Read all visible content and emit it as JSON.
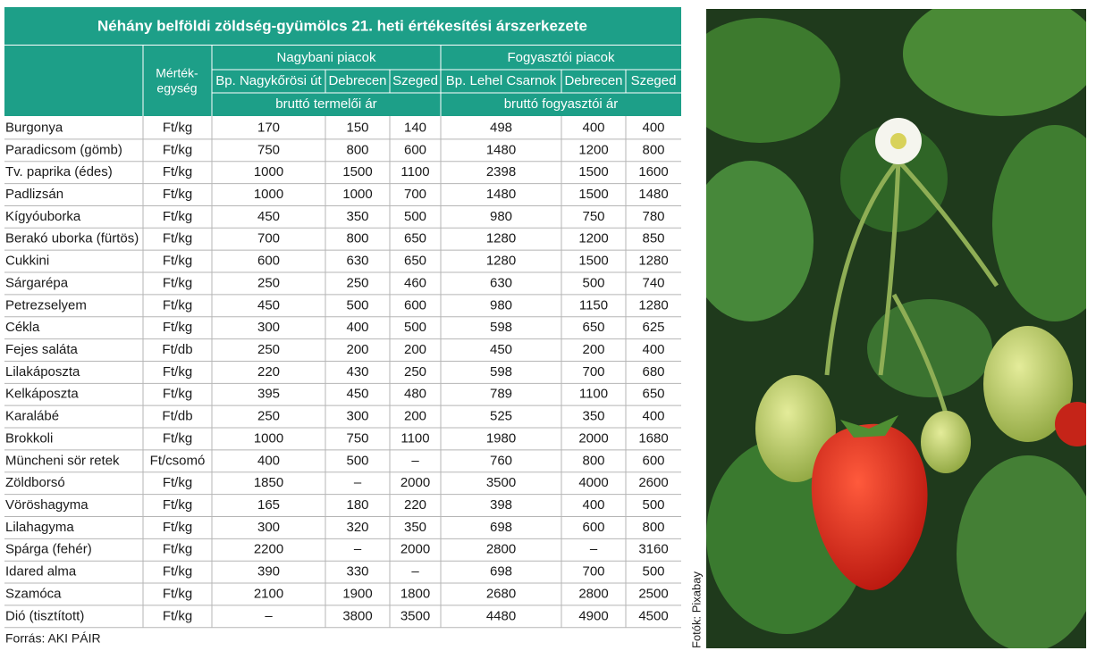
{
  "title": "Néhány belföldi zöldség-gyümölcs 21. heti értékesítési árszerkezete",
  "header": {
    "unit": [
      "Mérték-",
      "egység"
    ],
    "groups": [
      "Nagybani piacok",
      "Fogyasztói piacok"
    ],
    "columns": [
      "Bp. Nagykőrösi út",
      "Debrecen",
      "Szeged",
      "Bp. Lehel Csarnok",
      "Debrecen",
      "Szeged"
    ],
    "price_types": [
      "bruttó termelői ár",
      "bruttó fogyasztói ár"
    ]
  },
  "rows": [
    [
      "Burgonya",
      "Ft/kg",
      170,
      150,
      140,
      498,
      400,
      400
    ],
    [
      "Paradicsom (gömb)",
      "Ft/kg",
      750,
      800,
      600,
      1480,
      1200,
      800
    ],
    [
      "Tv. paprika (édes)",
      "Ft/kg",
      1000,
      1500,
      1100,
      2398,
      1500,
      1600
    ],
    [
      "Padlizsán",
      "Ft/kg",
      1000,
      1000,
      700,
      1480,
      1500,
      1480
    ],
    [
      "Kígyóuborka",
      "Ft/kg",
      450,
      350,
      500,
      980,
      750,
      780
    ],
    [
      "Berakó uborka (fürtös)",
      "Ft/kg",
      700,
      800,
      650,
      1280,
      1200,
      850
    ],
    [
      "Cukkini",
      "Ft/kg",
      600,
      630,
      650,
      1280,
      1500,
      1280
    ],
    [
      "Sárgarépa",
      "Ft/kg",
      250,
      250,
      460,
      630,
      500,
      740
    ],
    [
      "Petrezselyem",
      "Ft/kg",
      450,
      500,
      600,
      980,
      1150,
      1280
    ],
    [
      "Cékla",
      "Ft/kg",
      300,
      400,
      500,
      598,
      650,
      625
    ],
    [
      "Fejes saláta",
      "Ft/db",
      250,
      200,
      200,
      450,
      200,
      400
    ],
    [
      "Lilakáposzta",
      "Ft/kg",
      220,
      430,
      250,
      598,
      700,
      680
    ],
    [
      "Kelkáposzta",
      "Ft/kg",
      395,
      450,
      480,
      789,
      1100,
      650
    ],
    [
      "Karalábé",
      "Ft/db",
      250,
      300,
      200,
      525,
      350,
      400
    ],
    [
      "Brokkoli",
      "Ft/kg",
      1000,
      750,
      1100,
      1980,
      2000,
      1680
    ],
    [
      "Müncheni sör retek",
      "Ft/csomó",
      400,
      500,
      "–",
      760,
      800,
      600
    ],
    [
      "Zöldborsó",
      "Ft/kg",
      1850,
      "–",
      2000,
      3500,
      4000,
      2600
    ],
    [
      "Vöröshagyma",
      "Ft/kg",
      165,
      180,
      220,
      398,
      400,
      500
    ],
    [
      "Lilahagyma",
      "Ft/kg",
      300,
      320,
      350,
      698,
      600,
      800
    ],
    [
      "Spárga (fehér)",
      "Ft/kg",
      2200,
      "–",
      2000,
      2800,
      "–",
      3160
    ],
    [
      "Idared alma",
      "Ft/kg",
      390,
      330,
      "–",
      698,
      700,
      500
    ],
    [
      "Szamóca",
      "Ft/kg",
      2100,
      1900,
      1800,
      2680,
      2800,
      2500
    ],
    [
      "Dió (tisztított)",
      "Ft/kg",
      "–",
      3800,
      3500,
      4480,
      4900,
      4500
    ]
  ],
  "source": "Forrás: AKI PÁIR",
  "photo_credit": "Fotók: Pixabay"
}
